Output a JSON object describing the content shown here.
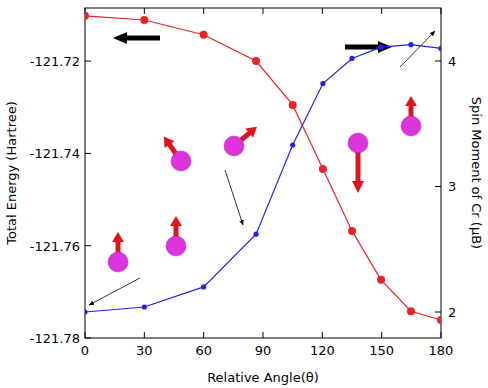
{
  "chart_data": {
    "type": "line",
    "x_label": "Relative Angle(θ)",
    "y_label": "Total Energy (Hartree)",
    "y2_label": "Spin Moment of Cr (μB)",
    "x": [
      0,
      30,
      60,
      86.5,
      105,
      120.3,
      135,
      149.7,
      164.8,
      180
    ],
    "xlim": [
      0,
      180
    ],
    "xticks": [
      0,
      30,
      60,
      90,
      120,
      150,
      180
    ],
    "ylim": [
      -121.78,
      -121.7085
    ],
    "yticks": [
      -121.78,
      -121.76,
      -121.74,
      -121.72
    ],
    "y2lim": [
      1.793,
      4.422
    ],
    "y2ticks": [
      2,
      3,
      4
    ],
    "grid": false,
    "series": [
      {
        "name": "Total Energy",
        "color": "#e8232a",
        "marker": "circle",
        "line_style": "solid",
        "axis": "y",
        "values": [
          -121.7102,
          -121.7111,
          -121.7143,
          -121.72,
          -121.7295,
          -121.7434,
          -121.7568,
          -121.7674,
          -121.7742,
          -121.7761
        ]
      },
      {
        "name": "Spin Moment of Cr",
        "color": "#2424e0",
        "marker": "circle",
        "line_style": "solid",
        "axis": "y2",
        "values": [
          2.0,
          2.04,
          2.2,
          2.62,
          3.33,
          3.82,
          4.02,
          4.11,
          4.13,
          4.1
        ]
      }
    ]
  }
}
